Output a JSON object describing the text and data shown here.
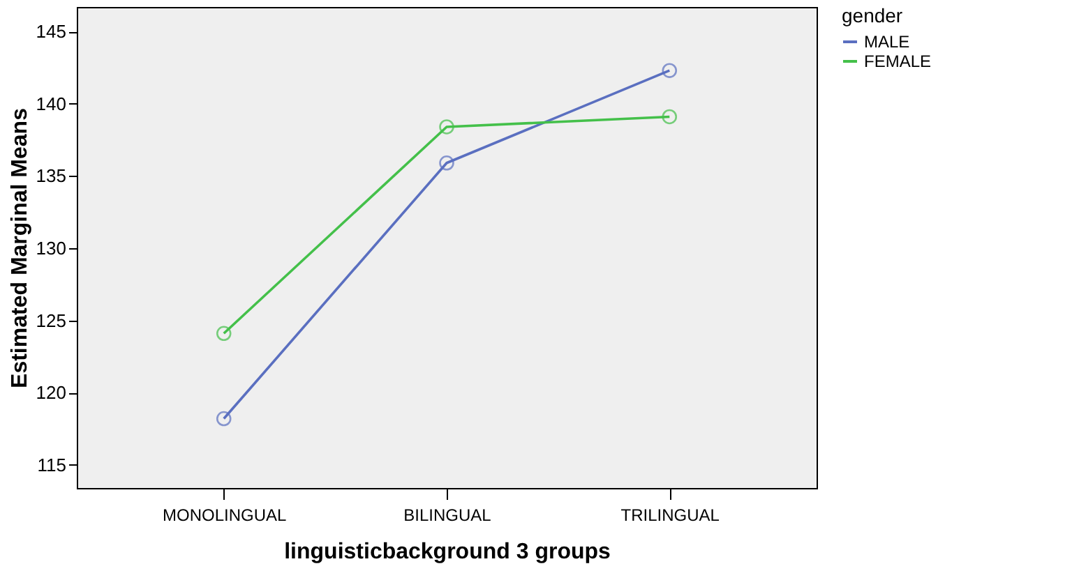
{
  "chart_data": {
    "type": "line",
    "xlabel": "linguisticbackground 3 groups",
    "ylabel": "Estimated Marginal Means",
    "legend_title": "gender",
    "categories": [
      "MONOLINGUAL",
      "BILINGUAL",
      "TRILINGUAL"
    ],
    "series": [
      {
        "name": "MALE",
        "color": "#5a6fc0",
        "values": [
          118.2,
          135.9,
          142.3
        ]
      },
      {
        "name": "FEMALE",
        "color": "#44c04a",
        "values": [
          124.1,
          138.4,
          139.1
        ]
      }
    ],
    "ylim": [
      113.4,
      146.7
    ],
    "yticks": [
      115,
      120,
      125,
      130,
      135,
      140,
      145
    ],
    "grid": false,
    "legend": "right",
    "marker": "circle",
    "line_style": "solid"
  }
}
